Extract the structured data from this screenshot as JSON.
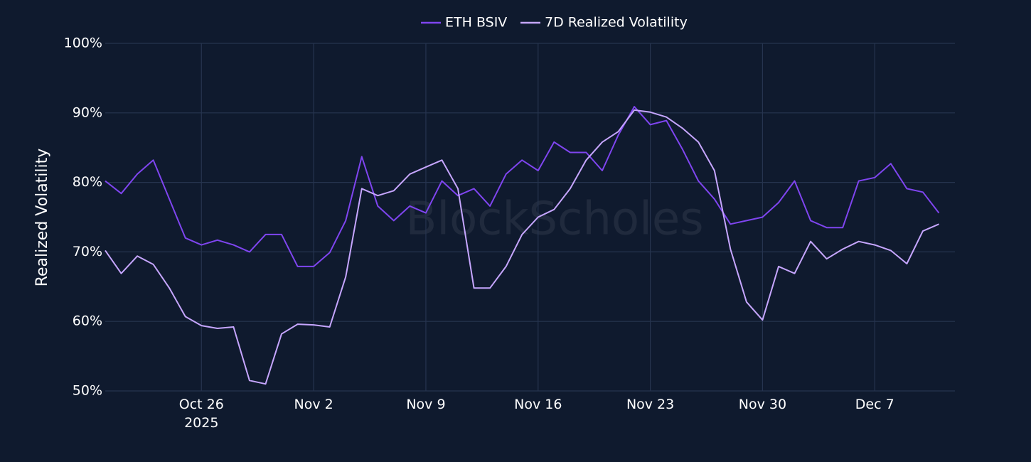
{
  "chart_data": {
    "type": "line",
    "watermark": "BlockScholes",
    "y_label": "Realized Volatility",
    "legend": "top",
    "grid": true,
    "x": [
      "2025-10-20",
      "2025-10-21",
      "2025-10-22",
      "2025-10-23",
      "2025-10-24",
      "2025-10-25",
      "2025-10-26",
      "2025-10-27",
      "2025-10-28",
      "2025-10-29",
      "2025-10-30",
      "2025-10-31",
      "2025-11-01",
      "2025-11-02",
      "2025-11-03",
      "2025-11-04",
      "2025-11-05",
      "2025-11-06",
      "2025-11-07",
      "2025-11-08",
      "2025-11-09",
      "2025-11-10",
      "2025-11-11",
      "2025-11-12",
      "2025-11-13",
      "2025-11-14",
      "2025-11-15",
      "2025-11-16",
      "2025-11-17",
      "2025-11-18",
      "2025-11-19",
      "2025-11-20",
      "2025-11-21",
      "2025-11-22",
      "2025-11-23",
      "2025-11-24",
      "2025-11-25",
      "2025-11-26",
      "2025-11-27",
      "2025-11-28",
      "2025-11-29",
      "2025-11-30",
      "2025-12-01",
      "2025-12-02",
      "2025-12-03",
      "2025-12-04",
      "2025-12-05",
      "2025-12-06",
      "2025-12-07",
      "2025-12-08",
      "2025-12-09",
      "2025-12-10",
      "2025-12-11"
    ],
    "series": [
      {
        "name": "ETH BSIV",
        "color": "#7f45f0",
        "values": [
          80.2,
          78.4,
          81.2,
          83.2,
          77.6,
          72,
          71,
          71.7,
          71,
          70,
          72.5,
          72.5,
          67.9,
          67.9,
          69.9,
          74.5,
          83.7,
          76.6,
          74.5,
          76.6,
          75.6,
          80.2,
          78.1,
          79.1,
          76.6,
          81.2,
          83.2,
          81.7,
          85.8,
          84.3,
          84.3,
          81.7,
          86.8,
          90.9,
          88.3,
          88.9,
          84.8,
          80.2,
          77.6,
          74,
          74.5,
          75,
          77.1,
          80.2,
          74.5,
          73.5,
          73.5,
          80.2,
          80.7,
          82.7,
          79.1,
          78.6,
          75.6
        ]
      },
      {
        "name": "7D Realized Volatility",
        "color": "#c6a6ff",
        "values": [
          70.2,
          66.9,
          69.4,
          68.2,
          64.8,
          60.7,
          59.4,
          59,
          59.2,
          51.5,
          51,
          58.2,
          59.6,
          59.5,
          59.2,
          66.4,
          79.1,
          78.1,
          78.8,
          81.2,
          82.2,
          83.2,
          79.1,
          64.8,
          64.8,
          67.9,
          72.5,
          75,
          76.1,
          79.1,
          83.2,
          85.8,
          87.3,
          90.4,
          90.1,
          89.4,
          87.8,
          85.8,
          81.7,
          70.4,
          62.8,
          60.2,
          67.9,
          66.9,
          71.5,
          69,
          70.4,
          71.5,
          71,
          70.2,
          68.3,
          73,
          74
        ]
      }
    ],
    "xlim": [
      "2025-10-20",
      "2025-12-12"
    ],
    "xticks": [
      {
        "value": "2025-10-26",
        "label": "Oct 26\n2025"
      },
      {
        "value": "2025-11-02",
        "label": "Nov 2"
      },
      {
        "value": "2025-11-09",
        "label": "Nov 9"
      },
      {
        "value": "2025-11-16",
        "label": "Nov 16"
      },
      {
        "value": "2025-11-23",
        "label": "Nov 23"
      },
      {
        "value": "2025-11-30",
        "label": "Nov 30"
      },
      {
        "value": "2025-12-07",
        "label": "Dec 7"
      }
    ],
    "ylim": [
      50,
      100
    ],
    "yticks": [
      {
        "value": 50,
        "label": "50%"
      },
      {
        "value": 60,
        "label": "60%"
      },
      {
        "value": 70,
        "label": "70%"
      },
      {
        "value": 80,
        "label": "80%"
      },
      {
        "value": 90,
        "label": "90%"
      },
      {
        "value": 100,
        "label": "100%"
      }
    ]
  }
}
